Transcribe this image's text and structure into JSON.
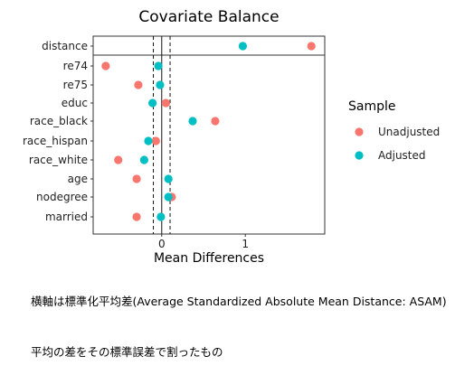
{
  "chart_data": {
    "type": "scatter",
    "title": "Covariate Balance",
    "xlabel": "Mean Differences",
    "ylabel": "",
    "xlim": [
      -0.82,
      1.95
    ],
    "xticks": [
      {
        "value": 0,
        "label": "0"
      },
      {
        "value": 1,
        "label": "1"
      }
    ],
    "reference_lines": [
      -0.1,
      0,
      0.1
    ],
    "grid": false,
    "legend": {
      "title": "Sample",
      "position": "right"
    },
    "categories": [
      "distance",
      "re74",
      "re75",
      "educ",
      "race_black",
      "race_hispan",
      "race_white",
      "age",
      "nodegree",
      "married"
    ],
    "series": [
      {
        "name": "Unadjusted",
        "color": "#F8766D",
        "values": [
          1.79,
          -0.67,
          -0.28,
          0.05,
          0.64,
          -0.07,
          -0.52,
          -0.3,
          0.12,
          -0.3
        ]
      },
      {
        "name": "Adjusted",
        "color": "#00BFC4",
        "values": [
          0.97,
          -0.04,
          -0.02,
          -0.11,
          0.37,
          -0.16,
          -0.21,
          0.08,
          0.08,
          -0.01
        ]
      }
    ]
  },
  "caption": {
    "line1": "横軸は標準化平均差(Average Standardized Absolute Mean Distance: ASAM)",
    "line2": "平均の差をその標準誤差で割ったもの"
  }
}
